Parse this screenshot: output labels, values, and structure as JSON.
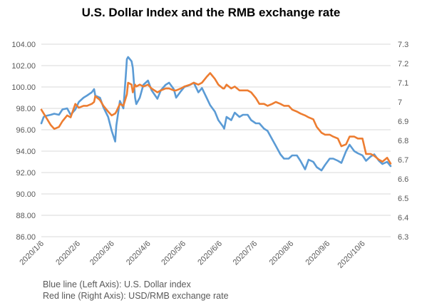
{
  "chart_data": {
    "type": "line",
    "title": "U.S. Dollar Index and the RMB exchange rate",
    "xlabel": "",
    "ylabel": "",
    "y_left_lim": [
      86.0,
      104.0
    ],
    "y_left_ticks": [
      "86.00",
      "88.00",
      "90.00",
      "92.00",
      "94.00",
      "96.00",
      "98.00",
      "100.00",
      "102.00",
      "104.00"
    ],
    "y_right_lim": [
      6.3,
      7.3
    ],
    "y_right_ticks": [
      "6.3",
      "6.4",
      "6.5",
      "6.6",
      "6.7",
      "6.8",
      "6.9",
      "7",
      "7.1",
      "7.2",
      "7.3"
    ],
    "x_start": "2020-01-06",
    "x_end": "2020-10-30",
    "x_tick_labels": [
      "2020/1/6",
      "2020/2/6",
      "2020/3/6",
      "2020/4/6",
      "2020/5/6",
      "2020/6/6",
      "2020/7/6",
      "2020/8/6",
      "2020/9/6",
      "2020/10/6"
    ],
    "x_tick_dates": [
      "2020-01-06",
      "2020-02-06",
      "2020-03-06",
      "2020-04-06",
      "2020-05-06",
      "2020-06-06",
      "2020-07-06",
      "2020-08-06",
      "2020-09-06",
      "2020-10-06"
    ],
    "grid": true,
    "series": [
      {
        "axis": "left",
        "color": "#5B9BD5",
        "points": [
          [
            "2020-01-06",
            96.6
          ],
          [
            "2020-01-08",
            97.2
          ],
          [
            "2020-01-10",
            97.3
          ],
          [
            "2020-01-14",
            97.4
          ],
          [
            "2020-01-17",
            97.5
          ],
          [
            "2020-01-21",
            97.4
          ],
          [
            "2020-01-24",
            97.9
          ],
          [
            "2020-01-28",
            98.0
          ],
          [
            "2020-01-31",
            97.4
          ],
          [
            "2020-02-04",
            97.9
          ],
          [
            "2020-02-07",
            98.6
          ],
          [
            "2020-02-11",
            99.0
          ],
          [
            "2020-02-14",
            99.2
          ],
          [
            "2020-02-18",
            99.5
          ],
          [
            "2020-02-20",
            99.8
          ],
          [
            "2020-02-21",
            99.2
          ],
          [
            "2020-02-25",
            99.0
          ],
          [
            "2020-02-28",
            98.1
          ],
          [
            "2020-03-03",
            97.2
          ],
          [
            "2020-03-06",
            95.9
          ],
          [
            "2020-03-09",
            94.9
          ],
          [
            "2020-03-10",
            96.4
          ],
          [
            "2020-03-13",
            98.7
          ],
          [
            "2020-03-16",
            98.0
          ],
          [
            "2020-03-18",
            101.0
          ],
          [
            "2020-03-19",
            102.6
          ],
          [
            "2020-03-20",
            102.8
          ],
          [
            "2020-03-23",
            102.4
          ],
          [
            "2020-03-24",
            101.8
          ],
          [
            "2020-03-26",
            99.0
          ],
          [
            "2020-03-27",
            98.4
          ],
          [
            "2020-03-30",
            99.0
          ],
          [
            "2020-04-02",
            100.2
          ],
          [
            "2020-04-06",
            100.6
          ],
          [
            "2020-04-09",
            99.7
          ],
          [
            "2020-04-14",
            98.9
          ],
          [
            "2020-04-17",
            99.7
          ],
          [
            "2020-04-21",
            100.2
          ],
          [
            "2020-04-24",
            100.4
          ],
          [
            "2020-04-28",
            99.8
          ],
          [
            "2020-04-30",
            99.0
          ],
          [
            "2020-05-04",
            99.6
          ],
          [
            "2020-05-07",
            100.0
          ],
          [
            "2020-05-12",
            100.2
          ],
          [
            "2020-05-15",
            100.4
          ],
          [
            "2020-05-19",
            99.5
          ],
          [
            "2020-05-22",
            99.9
          ],
          [
            "2020-05-26",
            99.0
          ],
          [
            "2020-05-29",
            98.3
          ],
          [
            "2020-06-02",
            97.7
          ],
          [
            "2020-06-05",
            96.9
          ],
          [
            "2020-06-09",
            96.3
          ],
          [
            "2020-06-10",
            96.1
          ],
          [
            "2020-06-12",
            97.2
          ],
          [
            "2020-06-16",
            96.9
          ],
          [
            "2020-06-19",
            97.6
          ],
          [
            "2020-06-23",
            97.2
          ],
          [
            "2020-06-26",
            97.4
          ],
          [
            "2020-06-30",
            97.4
          ],
          [
            "2020-07-03",
            96.9
          ],
          [
            "2020-07-07",
            96.6
          ],
          [
            "2020-07-10",
            96.6
          ],
          [
            "2020-07-14",
            96.1
          ],
          [
            "2020-07-17",
            95.9
          ],
          [
            "2020-07-21",
            95.1
          ],
          [
            "2020-07-24",
            94.5
          ],
          [
            "2020-07-28",
            93.7
          ],
          [
            "2020-07-31",
            93.3
          ],
          [
            "2020-08-04",
            93.3
          ],
          [
            "2020-08-07",
            93.6
          ],
          [
            "2020-08-11",
            93.6
          ],
          [
            "2020-08-14",
            93.1
          ],
          [
            "2020-08-18",
            92.3
          ],
          [
            "2020-08-21",
            93.2
          ],
          [
            "2020-08-25",
            93.0
          ],
          [
            "2020-08-28",
            92.5
          ],
          [
            "2020-09-01",
            92.2
          ],
          [
            "2020-09-04",
            92.7
          ],
          [
            "2020-09-08",
            93.3
          ],
          [
            "2020-09-11",
            93.3
          ],
          [
            "2020-09-15",
            93.1
          ],
          [
            "2020-09-18",
            92.9
          ],
          [
            "2020-09-22",
            94.0
          ],
          [
            "2020-09-25",
            94.6
          ],
          [
            "2020-09-29",
            94.0
          ],
          [
            "2020-10-02",
            93.8
          ],
          [
            "2020-10-06",
            93.6
          ],
          [
            "2020-10-09",
            93.1
          ],
          [
            "2020-10-13",
            93.5
          ],
          [
            "2020-10-16",
            93.7
          ],
          [
            "2020-10-20",
            93.1
          ],
          [
            "2020-10-23",
            92.8
          ],
          [
            "2020-10-27",
            93.0
          ],
          [
            "2020-10-30",
            92.6
          ]
        ]
      },
      {
        "axis": "right",
        "color": "#ED7D31",
        "points": [
          [
            "2020-01-06",
            6.96
          ],
          [
            "2020-01-08",
            6.94
          ],
          [
            "2020-01-10",
            6.92
          ],
          [
            "2020-01-14",
            6.88
          ],
          [
            "2020-01-17",
            6.86
          ],
          [
            "2020-01-21",
            6.87
          ],
          [
            "2020-01-24",
            6.9
          ],
          [
            "2020-01-28",
            6.93
          ],
          [
            "2020-01-31",
            6.92
          ],
          [
            "2020-02-04",
            6.99
          ],
          [
            "2020-02-07",
            6.97
          ],
          [
            "2020-02-11",
            6.98
          ],
          [
            "2020-02-14",
            6.98
          ],
          [
            "2020-02-18",
            6.99
          ],
          [
            "2020-02-20",
            7.0
          ],
          [
            "2020-02-21",
            7.03
          ],
          [
            "2020-02-25",
            7.01
          ],
          [
            "2020-02-28",
            6.98
          ],
          [
            "2020-03-03",
            6.95
          ],
          [
            "2020-03-06",
            6.93
          ],
          [
            "2020-03-09",
            6.94
          ],
          [
            "2020-03-10",
            6.95
          ],
          [
            "2020-03-13",
            6.99
          ],
          [
            "2020-03-16",
            6.98
          ],
          [
            "2020-03-18",
            7.02
          ],
          [
            "2020-03-19",
            7.04
          ],
          [
            "2020-03-20",
            7.1
          ],
          [
            "2020-03-23",
            7.09
          ],
          [
            "2020-03-24",
            7.05
          ],
          [
            "2020-03-26",
            7.09
          ],
          [
            "2020-03-27",
            7.08
          ],
          [
            "2020-03-30",
            7.09
          ],
          [
            "2020-04-02",
            7.08
          ],
          [
            "2020-04-06",
            7.09
          ],
          [
            "2020-04-09",
            7.07
          ],
          [
            "2020-04-14",
            7.05
          ],
          [
            "2020-04-17",
            7.06
          ],
          [
            "2020-04-21",
            7.07
          ],
          [
            "2020-04-24",
            7.07
          ],
          [
            "2020-04-28",
            7.06
          ],
          [
            "2020-04-30",
            7.06
          ],
          [
            "2020-05-04",
            7.07
          ],
          [
            "2020-05-07",
            7.08
          ],
          [
            "2020-05-12",
            7.09
          ],
          [
            "2020-05-15",
            7.1
          ],
          [
            "2020-05-19",
            7.09
          ],
          [
            "2020-05-22",
            7.1
          ],
          [
            "2020-05-26",
            7.13
          ],
          [
            "2020-05-29",
            7.15
          ],
          [
            "2020-06-02",
            7.12
          ],
          [
            "2020-06-05",
            7.09
          ],
          [
            "2020-06-09",
            7.07
          ],
          [
            "2020-06-10",
            7.07
          ],
          [
            "2020-06-12",
            7.09
          ],
          [
            "2020-06-16",
            7.07
          ],
          [
            "2020-06-19",
            7.08
          ],
          [
            "2020-06-23",
            7.06
          ],
          [
            "2020-06-26",
            7.06
          ],
          [
            "2020-06-30",
            7.06
          ],
          [
            "2020-07-03",
            7.05
          ],
          [
            "2020-07-07",
            7.02
          ],
          [
            "2020-07-10",
            6.99
          ],
          [
            "2020-07-14",
            6.99
          ],
          [
            "2020-07-17",
            6.98
          ],
          [
            "2020-07-21",
            6.99
          ],
          [
            "2020-07-24",
            7.0
          ],
          [
            "2020-07-28",
            6.99
          ],
          [
            "2020-07-31",
            6.98
          ],
          [
            "2020-08-04",
            6.98
          ],
          [
            "2020-08-07",
            6.96
          ],
          [
            "2020-08-11",
            6.95
          ],
          [
            "2020-08-14",
            6.94
          ],
          [
            "2020-08-18",
            6.93
          ],
          [
            "2020-08-21",
            6.92
          ],
          [
            "2020-08-25",
            6.91
          ],
          [
            "2020-08-28",
            6.87
          ],
          [
            "2020-09-01",
            6.84
          ],
          [
            "2020-09-04",
            6.83
          ],
          [
            "2020-09-08",
            6.83
          ],
          [
            "2020-09-11",
            6.82
          ],
          [
            "2020-09-15",
            6.81
          ],
          [
            "2020-09-18",
            6.77
          ],
          [
            "2020-09-22",
            6.78
          ],
          [
            "2020-09-25",
            6.82
          ],
          [
            "2020-09-29",
            6.82
          ],
          [
            "2020-10-02",
            6.81
          ],
          [
            "2020-10-06",
            6.81
          ],
          [
            "2020-10-09",
            6.73
          ],
          [
            "2020-10-13",
            6.73
          ],
          [
            "2020-10-16",
            6.72
          ],
          [
            "2020-10-20",
            6.7
          ],
          [
            "2020-10-23",
            6.69
          ],
          [
            "2020-10-27",
            6.71
          ],
          [
            "2020-10-30",
            6.68
          ]
        ]
      }
    ]
  },
  "notes": {
    "blue": "Blue line (Left Axis): U.S. Dollar index",
    "red": "Red line (Right Axis): USD/RMB exchange rate"
  }
}
